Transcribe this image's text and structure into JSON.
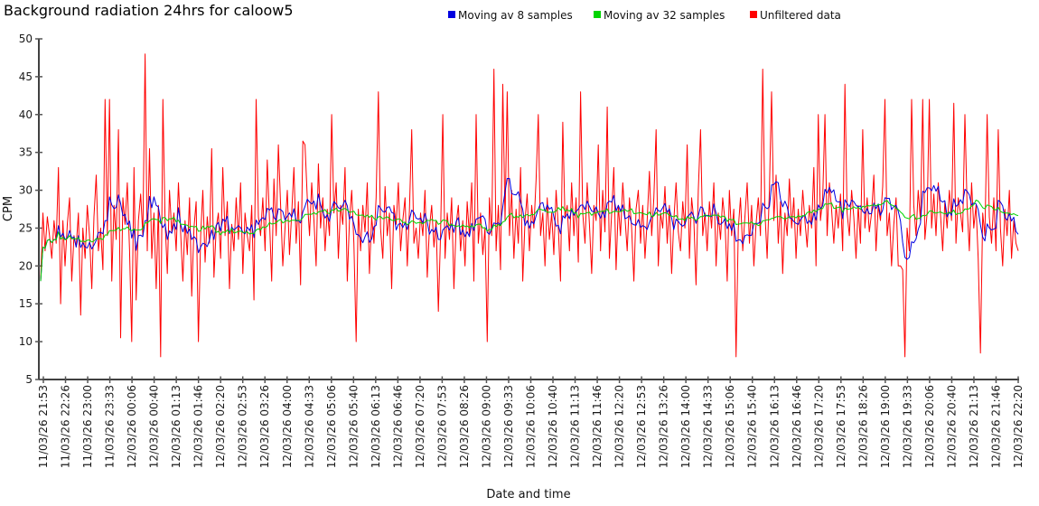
{
  "page": {
    "background": "#ffffff"
  },
  "chart_data": {
    "type": "line",
    "title": "Background radiation 24hrs for caloow5",
    "xlabel": "Date and time",
    "ylabel": "CPM",
    "ylim": [
      5,
      50
    ],
    "grid": false,
    "legend_position": "top-right",
    "colors": {
      "moving_av_8": "#0000e0",
      "moving_av_32": "#00d400",
      "unfiltered": "#ff0000",
      "axis": "#000000",
      "tick": "#555555",
      "text": "#1a1a1a"
    },
    "y_ticks": [
      5,
      10,
      15,
      20,
      25,
      30,
      35,
      40,
      45,
      50
    ],
    "x_tick_labels": [
      "11/03/26 21:53",
      "11/03/26 22:26",
      "11/03/26 23:00",
      "11/03/26 23:33",
      "12/03/26 00:06",
      "12/03/26 00:40",
      "12/03/26 01:13",
      "12/03/26 01:46",
      "12/03/26 02:20",
      "12/03/26 02:53",
      "12/03/26 03:26",
      "12/03/26 04:00",
      "12/03/26 04:33",
      "12/03/26 05:06",
      "12/03/26 05:40",
      "12/03/26 06:13",
      "12/03/26 06:46",
      "12/03/26 07:20",
      "12/03/26 07:53",
      "12/03/26 08:26",
      "12/03/26 09:00",
      "12/03/26 09:33",
      "12/03/26 10:06",
      "12/03/26 10:40",
      "12/03/26 11:13",
      "12/03/26 11:46",
      "12/03/26 12:20",
      "12/03/26 12:53",
      "12/03/26 13:26",
      "12/03/26 14:00",
      "12/03/26 14:33",
      "12/03/26 15:06",
      "12/03/26 15:40",
      "12/03/26 16:13",
      "12/03/26 16:46",
      "12/03/26 17:20",
      "12/03/26 17:53",
      "12/03/26 18:26",
      "12/03/26 19:00",
      "12/03/26 19:33",
      "12/03/26 20:06",
      "12/03/26 20:40",
      "12/03/26 21:13",
      "12/03/26 21:46",
      "12/03/26 22:20"
    ],
    "series": [
      {
        "name": "Moving av 8 samples",
        "type": "moving_average",
        "window": 8,
        "color_key": "moving_av_8"
      },
      {
        "name": "Moving av 32 samples",
        "type": "moving_average",
        "window": 32,
        "color_key": "moving_av_32"
      },
      {
        "name": "Unfiltered data",
        "type": "raw",
        "color_key": "unfiltered",
        "values": [
          18,
          27,
          22,
          26.5,
          24,
          21,
          26,
          23,
          33,
          15,
          26,
          20,
          25.5,
          29,
          18,
          24,
          22.5,
          27,
          13.5,
          25,
          21,
          28,
          24,
          17,
          26.5,
          32,
          22,
          25,
          19.5,
          42,
          24,
          42,
          18,
          28,
          23.5,
          38,
          10.5,
          29,
          25.5,
          31,
          22,
          10,
          33,
          15.5,
          26,
          29.5,
          24,
          48,
          22,
          35.5,
          21,
          27,
          17,
          28,
          8,
          42,
          26,
          19,
          30,
          24.5,
          27,
          22,
          31,
          24.5,
          18,
          26,
          21.5,
          29,
          16,
          25,
          28.5,
          10,
          24,
          30,
          20.5,
          26.5,
          23,
          35.5,
          18.5,
          25,
          27,
          21,
          33,
          24,
          28.5,
          17,
          25.5,
          22,
          29,
          23.5,
          31,
          19,
          27,
          24,
          22,
          28,
          15.5,
          42,
          26.5,
          24,
          29,
          22,
          34,
          26,
          18,
          31.5,
          24,
          36,
          28,
          20,
          25,
          30,
          21.5,
          27,
          33,
          23,
          28.5,
          17.5,
          36.5,
          36,
          29,
          24,
          31,
          26,
          20,
          33.5,
          25,
          29,
          22,
          27.5,
          24,
          40,
          27,
          31,
          21,
          28,
          25.5,
          33,
          18,
          26,
          30,
          23,
          10,
          27.5,
          22,
          28,
          24.5,
          31,
          19,
          26.5,
          23,
          29,
          43,
          25,
          21,
          30.5,
          24,
          27,
          17,
          28,
          25.5,
          31,
          22,
          26,
          29,
          20,
          27.5,
          38,
          23,
          25,
          21,
          27,
          24,
          30,
          18.5,
          25,
          28,
          22.5,
          26,
          14,
          24,
          40,
          21,
          27,
          23.5,
          29,
          17,
          25.5,
          28,
          22,
          26,
          20,
          28.5,
          24,
          31,
          18,
          40,
          23,
          27,
          21.5,
          25,
          10,
          29,
          24,
          46,
          22,
          28,
          19.5,
          44,
          26,
          43,
          24,
          30,
          21,
          27.5,
          23,
          33,
          18,
          26,
          29.5,
          22,
          28,
          25,
          31.5,
          40,
          24,
          27,
          20,
          29,
          23.5,
          27,
          21.5,
          30,
          25,
          18,
          39,
          26.5,
          28,
          22,
          31,
          24,
          29,
          20.5,
          43,
          27,
          23,
          31,
          25.5,
          19,
          28,
          26,
          36,
          22,
          30,
          24.5,
          41,
          21,
          27,
          33,
          19.5,
          28,
          24,
          31,
          26.5,
          22,
          29,
          25,
          18,
          27.5,
          30,
          23,
          28,
          21,
          26,
          32.5,
          24,
          29,
          38,
          20,
          27,
          25,
          30.5,
          23,
          28,
          19,
          26,
          31,
          24.5,
          22,
          28.5,
          25,
          36,
          21,
          29,
          26,
          17.5,
          30,
          38,
          24,
          27,
          22,
          28.5,
          25,
          31,
          20,
          27,
          23.5,
          29,
          26,
          18,
          30,
          24,
          27.5,
          8,
          25,
          29,
          22,
          26.5,
          31,
          23,
          28,
          20,
          25.5,
          29,
          24,
          46,
          27,
          21,
          30,
          43,
          26,
          32,
          23,
          28.5,
          19,
          27,
          24,
          31.5,
          25,
          29,
          21,
          27.5,
          24,
          30,
          26,
          22.5,
          28,
          25,
          33,
          20,
          40,
          26,
          29,
          40,
          24,
          31,
          27.5,
          23,
          28,
          25,
          29.5,
          22,
          44,
          27,
          24,
          30,
          26.5,
          21,
          28,
          23,
          38,
          25,
          29,
          24.5,
          27,
          32,
          22,
          28,
          26,
          30.5,
          42,
          24,
          27,
          20,
          25.5,
          29,
          20,
          20,
          19.5,
          8,
          25,
          22,
          42,
          28,
          24,
          30,
          26,
          42,
          23.5,
          27,
          42,
          25,
          29.5,
          24,
          31,
          27,
          22,
          28.5,
          25,
          30,
          26,
          41.5,
          23,
          29,
          27,
          24.5,
          40,
          28,
          22,
          31,
          25,
          28,
          21,
          8.5,
          27,
          24,
          40,
          26.5,
          23,
          29,
          22,
          38,
          25,
          20,
          27.5,
          24,
          30,
          21,
          26,
          23,
          22
        ]
      }
    ]
  }
}
